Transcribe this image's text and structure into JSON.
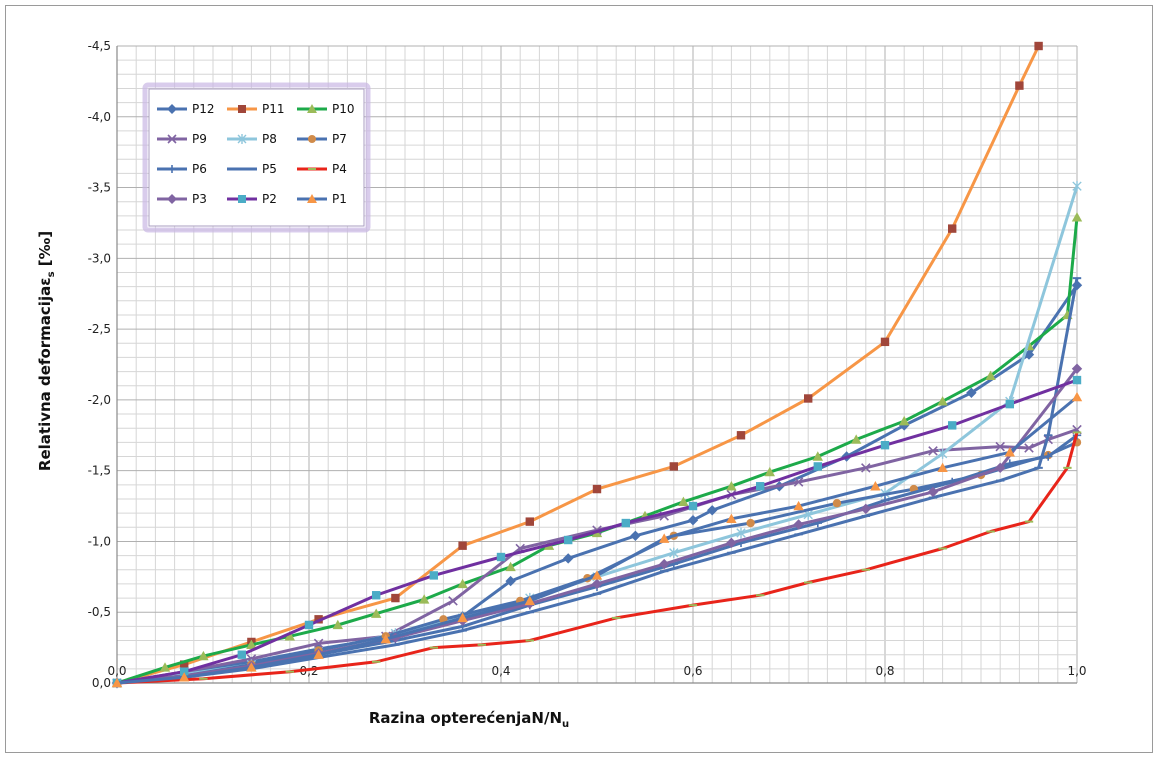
{
  "chart_data": {
    "type": "line",
    "title": "",
    "xlabel": "Razina opterećenja",
    "xlabel_var": "N/N",
    "xlabel_sub": "u",
    "ylabel": "Relativna deformacija",
    "ylabel_var": "ε",
    "ylabel_sub": "s",
    "ylabel_unit": " [‰]",
    "xlim": [
      0,
      1.0
    ],
    "ylim": [
      0,
      -4.5
    ],
    "x_ticks": [
      "0,0",
      "0,2",
      "0,4",
      "0,6",
      "0,8",
      "1,0"
    ],
    "y_ticks": [
      "0,0",
      "-0,5",
      "-1,0",
      "-1,5",
      "-2,0",
      "-2,5",
      "-3,0",
      "-3,5",
      "-4,0",
      "-4,5"
    ],
    "grid": true,
    "legend_position": "top-left",
    "series": [
      {
        "name": "P12",
        "color": "#4a72b0",
        "marker": "diamond",
        "x": [
          0,
          0.07,
          0.14,
          0.21,
          0.29,
          0.36,
          0.41,
          0.47,
          0.54,
          0.6,
          0.62,
          0.69,
          0.76,
          0.82,
          0.89,
          0.95,
          1.0
        ],
        "y": [
          0,
          -0.07,
          -0.15,
          -0.24,
          -0.33,
          -0.47,
          -0.72,
          -0.88,
          -1.04,
          -1.15,
          -1.22,
          -1.39,
          -1.6,
          -1.82,
          -2.05,
          -2.32,
          -2.81
        ]
      },
      {
        "name": "P11",
        "color": "#f79646",
        "marker": "square",
        "marker_color": "#a0463a",
        "x": [
          0,
          0.07,
          0.14,
          0.21,
          0.29,
          0.36,
          0.43,
          0.5,
          0.58,
          0.65,
          0.72,
          0.8,
          0.87,
          0.94,
          0.96
        ],
        "y": [
          0,
          -0.13,
          -0.29,
          -0.45,
          -0.6,
          -0.97,
          -1.14,
          -1.37,
          -1.53,
          -1.75,
          -2.01,
          -2.41,
          -3.21,
          -4.22,
          -4.5
        ]
      },
      {
        "name": "P10",
        "color": "#1daa4a",
        "marker": "triangle",
        "marker_color": "#9bbb59",
        "x": [
          0,
          0.05,
          0.09,
          0.14,
          0.18,
          0.23,
          0.27,
          0.32,
          0.36,
          0.41,
          0.45,
          0.5,
          0.55,
          0.59,
          0.64,
          0.68,
          0.73,
          0.77,
          0.82,
          0.86,
          0.91,
          0.95,
          0.99,
          1.0
        ],
        "y": [
          0,
          -0.11,
          -0.19,
          -0.27,
          -0.33,
          -0.41,
          -0.49,
          -0.59,
          -0.7,
          -0.82,
          -0.97,
          -1.06,
          -1.18,
          -1.28,
          -1.39,
          -1.49,
          -1.6,
          -1.72,
          -1.85,
          -1.99,
          -2.17,
          -2.38,
          -2.6,
          -3.29
        ]
      },
      {
        "name": "P9",
        "color": "#8064a2",
        "marker": "x",
        "x": [
          0,
          0.07,
          0.14,
          0.21,
          0.28,
          0.35,
          0.42,
          0.5,
          0.57,
          0.64,
          0.71,
          0.78,
          0.85,
          0.92,
          0.95,
          0.97,
          1.0
        ],
        "y": [
          0,
          -0.08,
          -0.17,
          -0.28,
          -0.33,
          -0.58,
          -0.95,
          -1.08,
          -1.18,
          -1.33,
          -1.42,
          -1.52,
          -1.64,
          -1.67,
          -1.66,
          -1.72,
          -1.79
        ]
      },
      {
        "name": "P8",
        "color": "#8ec6dc",
        "marker": "star",
        "x": [
          0,
          0.07,
          0.14,
          0.21,
          0.29,
          0.36,
          0.43,
          0.5,
          0.58,
          0.65,
          0.72,
          0.8,
          0.86,
          0.93,
          1.0
        ],
        "y": [
          0,
          -0.06,
          -0.13,
          -0.22,
          -0.35,
          -0.46,
          -0.6,
          -0.75,
          -0.92,
          -1.06,
          -1.19,
          -1.34,
          -1.62,
          -1.99,
          -3.51
        ]
      },
      {
        "name": "P7",
        "color": "#4a72b0",
        "marker": "circle",
        "marker_color": "#d08b4a",
        "x": [
          0,
          0.07,
          0.14,
          0.21,
          0.28,
          0.34,
          0.42,
          0.49,
          0.58,
          0.66,
          0.75,
          0.83,
          0.9,
          0.97,
          1.0
        ],
        "y": [
          0,
          -0.05,
          -0.13,
          -0.23,
          -0.33,
          -0.45,
          -0.58,
          -0.74,
          -1.04,
          -1.13,
          -1.27,
          -1.37,
          -1.47,
          -1.61,
          -1.7
        ]
      },
      {
        "name": "P6",
        "color": "#4a72b0",
        "marker": "plus",
        "x": [
          0,
          0.07,
          0.14,
          0.21,
          0.29,
          0.36,
          0.43,
          0.5,
          0.58,
          0.65,
          0.73,
          0.8,
          0.87,
          0.93,
          0.97,
          1.0
        ],
        "y": [
          0,
          -0.05,
          -0.12,
          -0.2,
          -0.3,
          -0.4,
          -0.55,
          -0.68,
          -0.84,
          -0.99,
          -1.13,
          -1.29,
          -1.42,
          -1.55,
          -1.6,
          -1.75
        ]
      },
      {
        "name": "P5",
        "color": "#4a72b0",
        "marker": "dash",
        "x": [
          0,
          0.07,
          0.14,
          0.21,
          0.29,
          0.36,
          0.43,
          0.5,
          0.57,
          0.64,
          0.71,
          0.78,
          0.85,
          0.92,
          0.96,
          0.97,
          1.0
        ],
        "y": [
          0,
          -0.04,
          -0.1,
          -0.18,
          -0.27,
          -0.37,
          -0.5,
          -0.63,
          -0.79,
          -0.92,
          -1.05,
          -1.18,
          -1.31,
          -1.43,
          -1.52,
          -1.75,
          -2.86
        ]
      },
      {
        "name": "P4",
        "color": "#e8241a",
        "marker": "dash",
        "marker_color": "#9bbb59",
        "x": [
          0,
          0.09,
          0.18,
          0.27,
          0.33,
          0.38,
          0.43,
          0.52,
          0.6,
          0.67,
          0.72,
          0.78,
          0.86,
          0.91,
          0.95,
          0.99,
          1.0
        ],
        "y": [
          0,
          -0.03,
          -0.08,
          -0.15,
          -0.25,
          -0.27,
          -0.3,
          -0.46,
          -0.55,
          -0.62,
          -0.71,
          -0.8,
          -0.95,
          -1.07,
          -1.14,
          -1.52,
          -1.77
        ]
      },
      {
        "name": "P3",
        "color": "#8064a2",
        "marker": "diamond",
        "x": [
          0,
          0.07,
          0.14,
          0.21,
          0.29,
          0.36,
          0.43,
          0.5,
          0.57,
          0.64,
          0.71,
          0.78,
          0.85,
          0.92,
          1.0
        ],
        "y": [
          0,
          -0.05,
          -0.12,
          -0.21,
          -0.32,
          -0.44,
          -0.56,
          -0.7,
          -0.84,
          -0.99,
          -1.12,
          -1.23,
          -1.35,
          -1.52,
          -2.22
        ]
      },
      {
        "name": "P2",
        "color": "#7030a0",
        "marker": "square",
        "marker_color": "#4bacc6",
        "x": [
          0,
          0.07,
          0.13,
          0.2,
          0.27,
          0.33,
          0.4,
          0.47,
          0.53,
          0.6,
          0.67,
          0.73,
          0.8,
          0.87,
          0.93,
          1.0
        ],
        "y": [
          0,
          -0.08,
          -0.2,
          -0.41,
          -0.62,
          -0.76,
          -0.89,
          -1.01,
          -1.13,
          -1.25,
          -1.39,
          -1.53,
          -1.68,
          -1.82,
          -1.97,
          -2.14
        ]
      },
      {
        "name": "P1",
        "color": "#4a72b0",
        "marker": "triangle",
        "marker_color": "#f79646",
        "x": [
          0,
          0.07,
          0.14,
          0.21,
          0.28,
          0.36,
          0.43,
          0.5,
          0.57,
          0.64,
          0.71,
          0.79,
          0.86,
          0.93,
          1.0
        ],
        "y": [
          0,
          -0.04,
          -0.11,
          -0.2,
          -0.31,
          -0.46,
          -0.58,
          -0.76,
          -1.02,
          -1.16,
          -1.25,
          -1.39,
          -1.52,
          -1.63,
          -2.02
        ]
      }
    ]
  }
}
